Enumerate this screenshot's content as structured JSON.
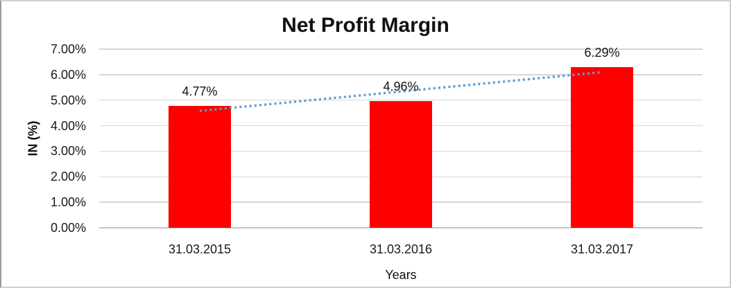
{
  "chart_data": {
    "type": "bar",
    "title": "Net Profit Margin",
    "xlabel": "Years",
    "ylabel": "IN (%)",
    "categories": [
      "31.03.2015",
      "31.03.2016",
      "31.03.2017"
    ],
    "values": [
      4.77,
      4.96,
      6.29
    ],
    "value_labels": [
      "4.77%",
      "4.96%",
      "6.29%"
    ],
    "y_ticks": [
      {
        "value": 7,
        "label": "7.00%"
      },
      {
        "value": 6,
        "label": "6.00%"
      },
      {
        "value": 5,
        "label": "5.00%"
      },
      {
        "value": 4,
        "label": "4.00%"
      },
      {
        "value": 3,
        "label": "3.00%"
      },
      {
        "value": 2,
        "label": "2.00%"
      },
      {
        "value": 1,
        "label": "1.00%"
      },
      {
        "value": 0,
        "label": "0.00%"
      }
    ],
    "ylim": [
      0,
      7
    ],
    "grid": true,
    "legend": "none",
    "bar_color": "#ff0000",
    "trendline": {
      "type": "linear",
      "style": "dotted",
      "color": "#5b9bd5"
    }
  }
}
